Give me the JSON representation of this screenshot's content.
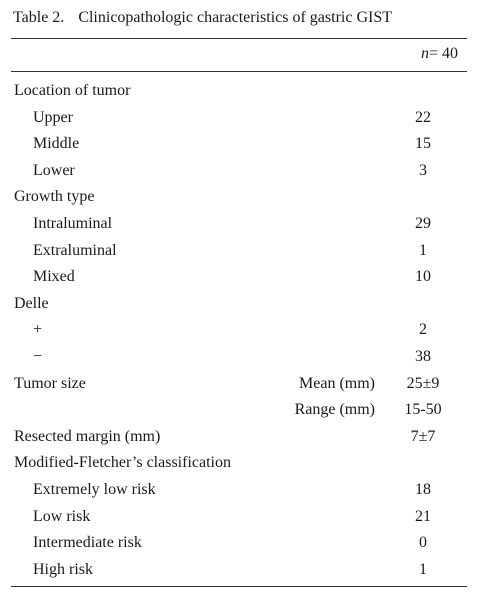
{
  "table": {
    "title_label": "Table 2.",
    "title_text": "Clinicopathologic characteristics of gastric GIST",
    "header_n_symbol": "n",
    "header_n_value": "= 40",
    "rows": [
      {
        "label": "Location of tumor",
        "sub": false,
        "mid": "",
        "value": ""
      },
      {
        "label": "Upper",
        "sub": true,
        "mid": "",
        "value": "22"
      },
      {
        "label": "Middle",
        "sub": true,
        "mid": "",
        "value": "15"
      },
      {
        "label": "Lower",
        "sub": true,
        "mid": "",
        "value": "3"
      },
      {
        "label": "Growth type",
        "sub": false,
        "mid": "",
        "value": ""
      },
      {
        "label": "Intraluminal",
        "sub": true,
        "mid": "",
        "value": "29"
      },
      {
        "label": "Extraluminal",
        "sub": true,
        "mid": "",
        "value": "1"
      },
      {
        "label": "Mixed",
        "sub": true,
        "mid": "",
        "value": "10"
      },
      {
        "label": "Delle",
        "sub": false,
        "mid": "",
        "value": ""
      },
      {
        "label": "+",
        "sub": true,
        "mid": "",
        "value": "2"
      },
      {
        "label": "−",
        "sub": true,
        "mid": "",
        "value": "38"
      },
      {
        "label": "Tumor size",
        "sub": false,
        "mid": "Mean (mm)",
        "value": "25±9"
      },
      {
        "label": "",
        "sub": false,
        "mid": "Range (mm)",
        "value": "15-50"
      },
      {
        "label": "Resected margin (mm)",
        "sub": false,
        "mid": "",
        "value": "7±7"
      },
      {
        "label": "Modified-Fletcher’s classification",
        "sub": false,
        "mid": "",
        "value": ""
      },
      {
        "label": "Extremely low risk",
        "sub": true,
        "mid": "",
        "value": "18"
      },
      {
        "label": "Low risk",
        "sub": true,
        "mid": "",
        "value": "21"
      },
      {
        "label": "Intermediate risk",
        "sub": true,
        "mid": "",
        "value": "0"
      },
      {
        "label": "High risk",
        "sub": true,
        "mid": "",
        "value": "1"
      }
    ]
  }
}
